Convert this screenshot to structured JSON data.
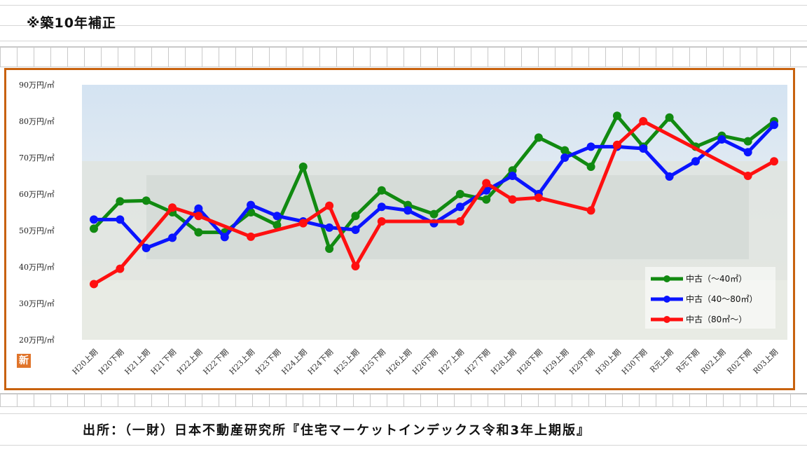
{
  "page": {
    "heading": "※築10年補正",
    "source": "出所：（一財）日本不動産研究所『住宅マーケットインデックス令和3年上期版』",
    "badge": "新"
  },
  "colors": {
    "frame": "#c8620e",
    "series": [
      "#118a11",
      "#0a14ff",
      "#ff1010"
    ]
  },
  "chart_data": {
    "type": "line",
    "title": "",
    "xlabel": "",
    "ylabel": "",
    "ylim": [
      20,
      90
    ],
    "yticks": [
      {
        "value": 90,
        "label": "90万円/㎡"
      },
      {
        "value": 80,
        "label": "80万円/㎡"
      },
      {
        "value": 70,
        "label": "70万円/㎡"
      },
      {
        "value": 60,
        "label": "60万円/㎡"
      },
      {
        "value": 50,
        "label": "50万円/㎡"
      },
      {
        "value": 40,
        "label": "40万円/㎡"
      },
      {
        "value": 30,
        "label": "30万円/㎡"
      },
      {
        "value": 20,
        "label": "20万円/㎡"
      }
    ],
    "categories": [
      "H20上期",
      "H20下期",
      "H21上期",
      "H21下期",
      "H22上期",
      "H22下期",
      "H23上期",
      "H23下期",
      "H24上期",
      "H24下期",
      "H25上期",
      "H25下期",
      "H26上期",
      "H26下期",
      "H27上期",
      "H27下期",
      "H28上期",
      "H28下期",
      "H29上期",
      "H29下期",
      "H30上期",
      "H30下期",
      "R元上期",
      "R元下期",
      "R02上期",
      "R02下期",
      "R03上期"
    ],
    "grid": false,
    "legend_position": "bottom-right",
    "series": [
      {
        "name": "中古（～40㎡）",
        "values": [
          50.5,
          58,
          58.2,
          55,
          49.5,
          49.5,
          55,
          51.5,
          67.5,
          45,
          54,
          61,
          57,
          54.5,
          60,
          58.5,
          66.5,
          75.5,
          72,
          67.5,
          81.5,
          73,
          81,
          73,
          76,
          74.5,
          80
        ]
      },
      {
        "name": "中古（40～80㎡）",
        "values": [
          53,
          53,
          45.2,
          48,
          56,
          48.2,
          57,
          54,
          52.5,
          50.8,
          50.2,
          56.5,
          55.5,
          52,
          56.5,
          61,
          65,
          60,
          70,
          73,
          73,
          72.5,
          64.8,
          69,
          75,
          71.5,
          79
        ]
      },
      {
        "name": "中古（80㎡～）",
        "values": [
          35.3,
          39.5,
          null,
          56.3,
          54,
          null,
          48.3,
          null,
          52,
          56.8,
          40.2,
          52.5,
          null,
          null,
          52.5,
          63,
          58.5,
          59,
          null,
          55.5,
          73.5,
          80,
          null,
          null,
          null,
          65,
          69
        ]
      }
    ]
  }
}
